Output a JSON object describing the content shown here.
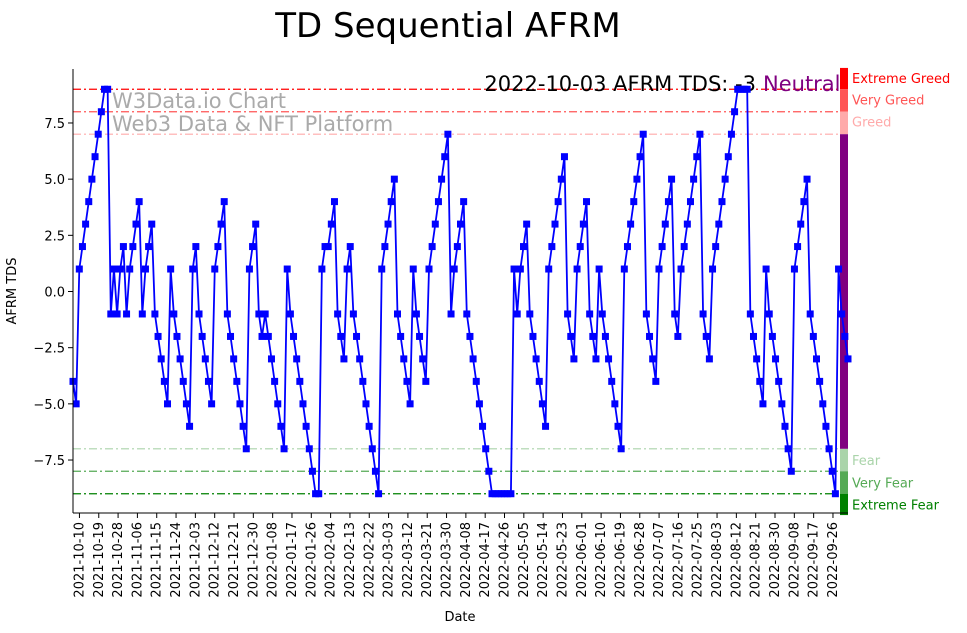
{
  "chart_data": {
    "type": "line",
    "title": "TD Sequential AFRM",
    "xlabel": "Date",
    "ylabel": "AFRM TDS",
    "ylim": [
      -9.9,
      9.9
    ],
    "yticks": [
      -7.5,
      -5.0,
      -2.5,
      0.0,
      2.5,
      5.0,
      7.5
    ],
    "ytick_labels": [
      "−7.5",
      "−5.0",
      "−2.5",
      "0.0",
      "2.5",
      "5.0",
      "7.5"
    ],
    "x_start": "2021-10-07",
    "x_end": "2022-10-03",
    "xtick_labels": [
      "2021-10-10",
      "2021-10-19",
      "2021-10-28",
      "2021-11-06",
      "2021-11-15",
      "2021-11-24",
      "2021-12-03",
      "2021-12-12",
      "2021-12-21",
      "2021-12-30",
      "2022-01-08",
      "2022-01-17",
      "2022-01-26",
      "2022-02-04",
      "2022-02-13",
      "2022-02-22",
      "2022-03-03",
      "2022-03-12",
      "2022-03-21",
      "2022-03-30",
      "2022-04-08",
      "2022-04-17",
      "2022-04-26",
      "2022-05-05",
      "2022-05-14",
      "2022-05-23",
      "2022-06-01",
      "2022-06-10",
      "2022-06-19",
      "2022-06-28",
      "2022-07-07",
      "2022-07-16",
      "2022-07-25",
      "2022-08-03",
      "2022-08-12",
      "2022-08-21",
      "2022-08-30",
      "2022-09-08",
      "2022-09-17",
      "2022-09-26"
    ],
    "series": [
      {
        "name": "AFRM TDS",
        "color": "#0000ff",
        "values": [
          -4,
          -5,
          1,
          2,
          3,
          4,
          5,
          6,
          7,
          8,
          9,
          9,
          -1,
          1,
          -1,
          1,
          2,
          -1,
          1,
          2,
          3,
          4,
          -1,
          1,
          2,
          3,
          -1,
          -2,
          -3,
          -4,
          -5,
          1,
          -1,
          -2,
          -3,
          -4,
          -5,
          -6,
          1,
          2,
          -1,
          -2,
          -3,
          -4,
          -5,
          1,
          2,
          3,
          4,
          -1,
          -2,
          -3,
          -4,
          -5,
          -6,
          -7,
          1,
          2,
          3,
          -1,
          -2,
          -1,
          -2,
          -3,
          -4,
          -5,
          -6,
          -7,
          1,
          -1,
          -2,
          -3,
          -4,
          -5,
          -6,
          -7,
          -8,
          -9,
          -9,
          1,
          2,
          2,
          3,
          4,
          -1,
          -2,
          -3,
          1,
          2,
          -1,
          -2,
          -3,
          -4,
          -5,
          -6,
          -7,
          -8,
          -9,
          1,
          2,
          3,
          4,
          5,
          -1,
          -2,
          -3,
          -4,
          -5,
          1,
          -1,
          -2,
          -3,
          -4,
          1,
          2,
          3,
          4,
          5,
          6,
          7,
          -1,
          1,
          2,
          3,
          4,
          -1,
          -2,
          -3,
          -4,
          -5,
          -6,
          -7,
          -8,
          -9,
          -9,
          -9,
          -9,
          -9,
          -9,
          -9,
          1,
          -1,
          1,
          2,
          3,
          -1,
          -2,
          -3,
          -4,
          -5,
          -6,
          1,
          2,
          3,
          4,
          5,
          6,
          -1,
          -2,
          -3,
          1,
          2,
          3,
          4,
          -1,
          -2,
          -3,
          1,
          -1,
          -2,
          -3,
          -4,
          -5,
          -6,
          -7,
          1,
          2,
          3,
          4,
          5,
          6,
          7,
          -1,
          -2,
          -3,
          -4,
          1,
          2,
          3,
          4,
          5,
          -1,
          -2,
          1,
          2,
          3,
          4,
          5,
          6,
          7,
          -1,
          -2,
          -3,
          1,
          2,
          3,
          4,
          5,
          6,
          7,
          8,
          9,
          9,
          9,
          9,
          -1,
          -2,
          -3,
          -4,
          -5,
          1,
          -1,
          -2,
          -3,
          -4,
          -5,
          -6,
          -7,
          -8,
          1,
          2,
          3,
          4,
          5,
          -1,
          -2,
          -3,
          -4,
          -5,
          -6,
          -7,
          -8,
          -9,
          1,
          -1,
          -2,
          -3
        ]
      }
    ],
    "thresholds": [
      {
        "value": 9,
        "label": "Extreme Greed",
        "color": "#ff0000"
      },
      {
        "value": 8,
        "label": "Very Greed",
        "color": "#ff5555"
      },
      {
        "value": 7,
        "label": "Greed",
        "color": "#ffaaaa"
      },
      {
        "value": -7,
        "label": "Fear",
        "color": "#aad4aa"
      },
      {
        "value": -8,
        "label": "Very Fear",
        "color": "#55aa55"
      },
      {
        "value": -9,
        "label": "Extreme Fear",
        "color": "#008000"
      }
    ],
    "neutral_color": "#800080",
    "annotation": {
      "text": "2022-10-03 AFRM TDS: -3",
      "status": "Neutral"
    },
    "watermark": {
      "line1": "W3Data.io Chart",
      "line2": "Web3 Data & NFT Platform"
    },
    "grid": false
  }
}
